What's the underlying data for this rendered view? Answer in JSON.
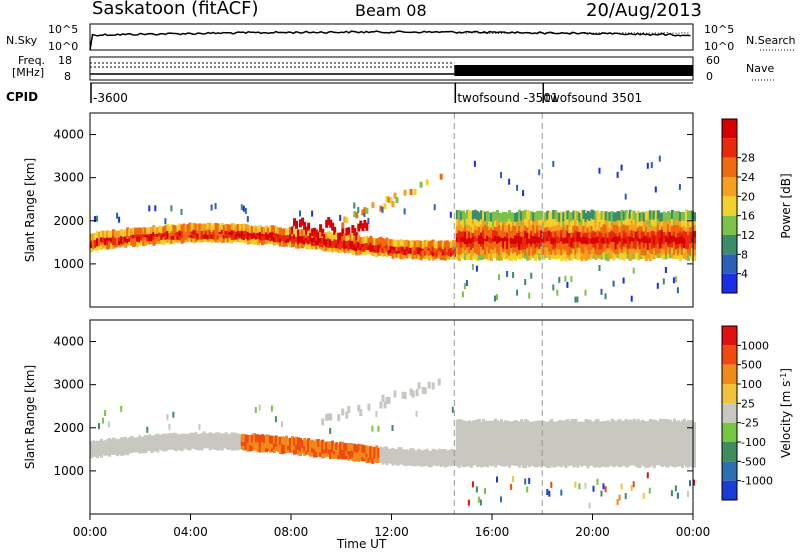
{
  "header": {
    "station": "Saskatoon (fitACF)",
    "beam": "Beam 08",
    "date": "20/Aug/2013"
  },
  "noise_panel": {
    "left_label": "N.Sky",
    "right_label": "N.Search",
    "left_ticks": [
      "10^5",
      "10^0"
    ],
    "right_ticks": [
      "10^5",
      "10^0"
    ]
  },
  "freq_panel": {
    "left_label_line1": "Freq.",
    "left_label_line2": "[MHz]",
    "left_ticks": [
      "18",
      "8"
    ],
    "right_label": "Nave",
    "right_ticks": [
      "60",
      "0"
    ]
  },
  "cpid_panel": {
    "label": "CPID",
    "entries": [
      {
        "time": "00:00",
        "text": "-3600"
      },
      {
        "time": "14:30",
        "text": "twofsound -3501"
      },
      {
        "time": "18:00",
        "text": "twofsound 3501"
      }
    ]
  },
  "x_axis": {
    "label": "Time UT",
    "ticks": [
      "00:00",
      "04:00",
      "08:00",
      "12:00",
      "16:00",
      "20:00",
      "00:00"
    ]
  },
  "chart_data": [
    {
      "type": "heatmap",
      "name": "power-panel",
      "ylabel": "Slant Range [km]",
      "ylim": [
        0,
        4500
      ],
      "yticks": [
        "1000",
        "2000",
        "3000",
        "4000"
      ],
      "xlim_hours": [
        0,
        24
      ],
      "colorbar": {
        "label": "Power [dB]",
        "ticks": [
          "4",
          "8",
          "12",
          "16",
          "20",
          "24",
          "28"
        ],
        "colors": [
          "#1b2ee6",
          "#2c5fb8",
          "#3a8c6a",
          "#7cc24a",
          "#f2d22a",
          "#f5a020",
          "#f06a10",
          "#e82a0a",
          "#d80000"
        ]
      },
      "dividers_hours": [
        14.5,
        18.0
      ]
    },
    {
      "type": "heatmap",
      "name": "velocity-panel",
      "ylabel": "Slant Range [km]",
      "ylim": [
        0,
        4500
      ],
      "yticks": [
        "1000",
        "2000",
        "3000",
        "4000"
      ],
      "xlim_hours": [
        0,
        24
      ],
      "colorbar": {
        "label": "Velocity [m s",
        "label_sup": "-1",
        "label_close": "]",
        "ticks": [
          "1000",
          "500",
          "100",
          "25",
          "-25",
          "-100",
          "-500",
          "-1000"
        ],
        "colors": [
          "#1b3bd6",
          "#2d6fb0",
          "#3e8d5a",
          "#76c642",
          "#c8c8c0",
          "#f2c23a",
          "#f28a1a",
          "#f04a10",
          "#e01010"
        ]
      },
      "dividers_hours": [
        14.5,
        18.0
      ]
    }
  ]
}
